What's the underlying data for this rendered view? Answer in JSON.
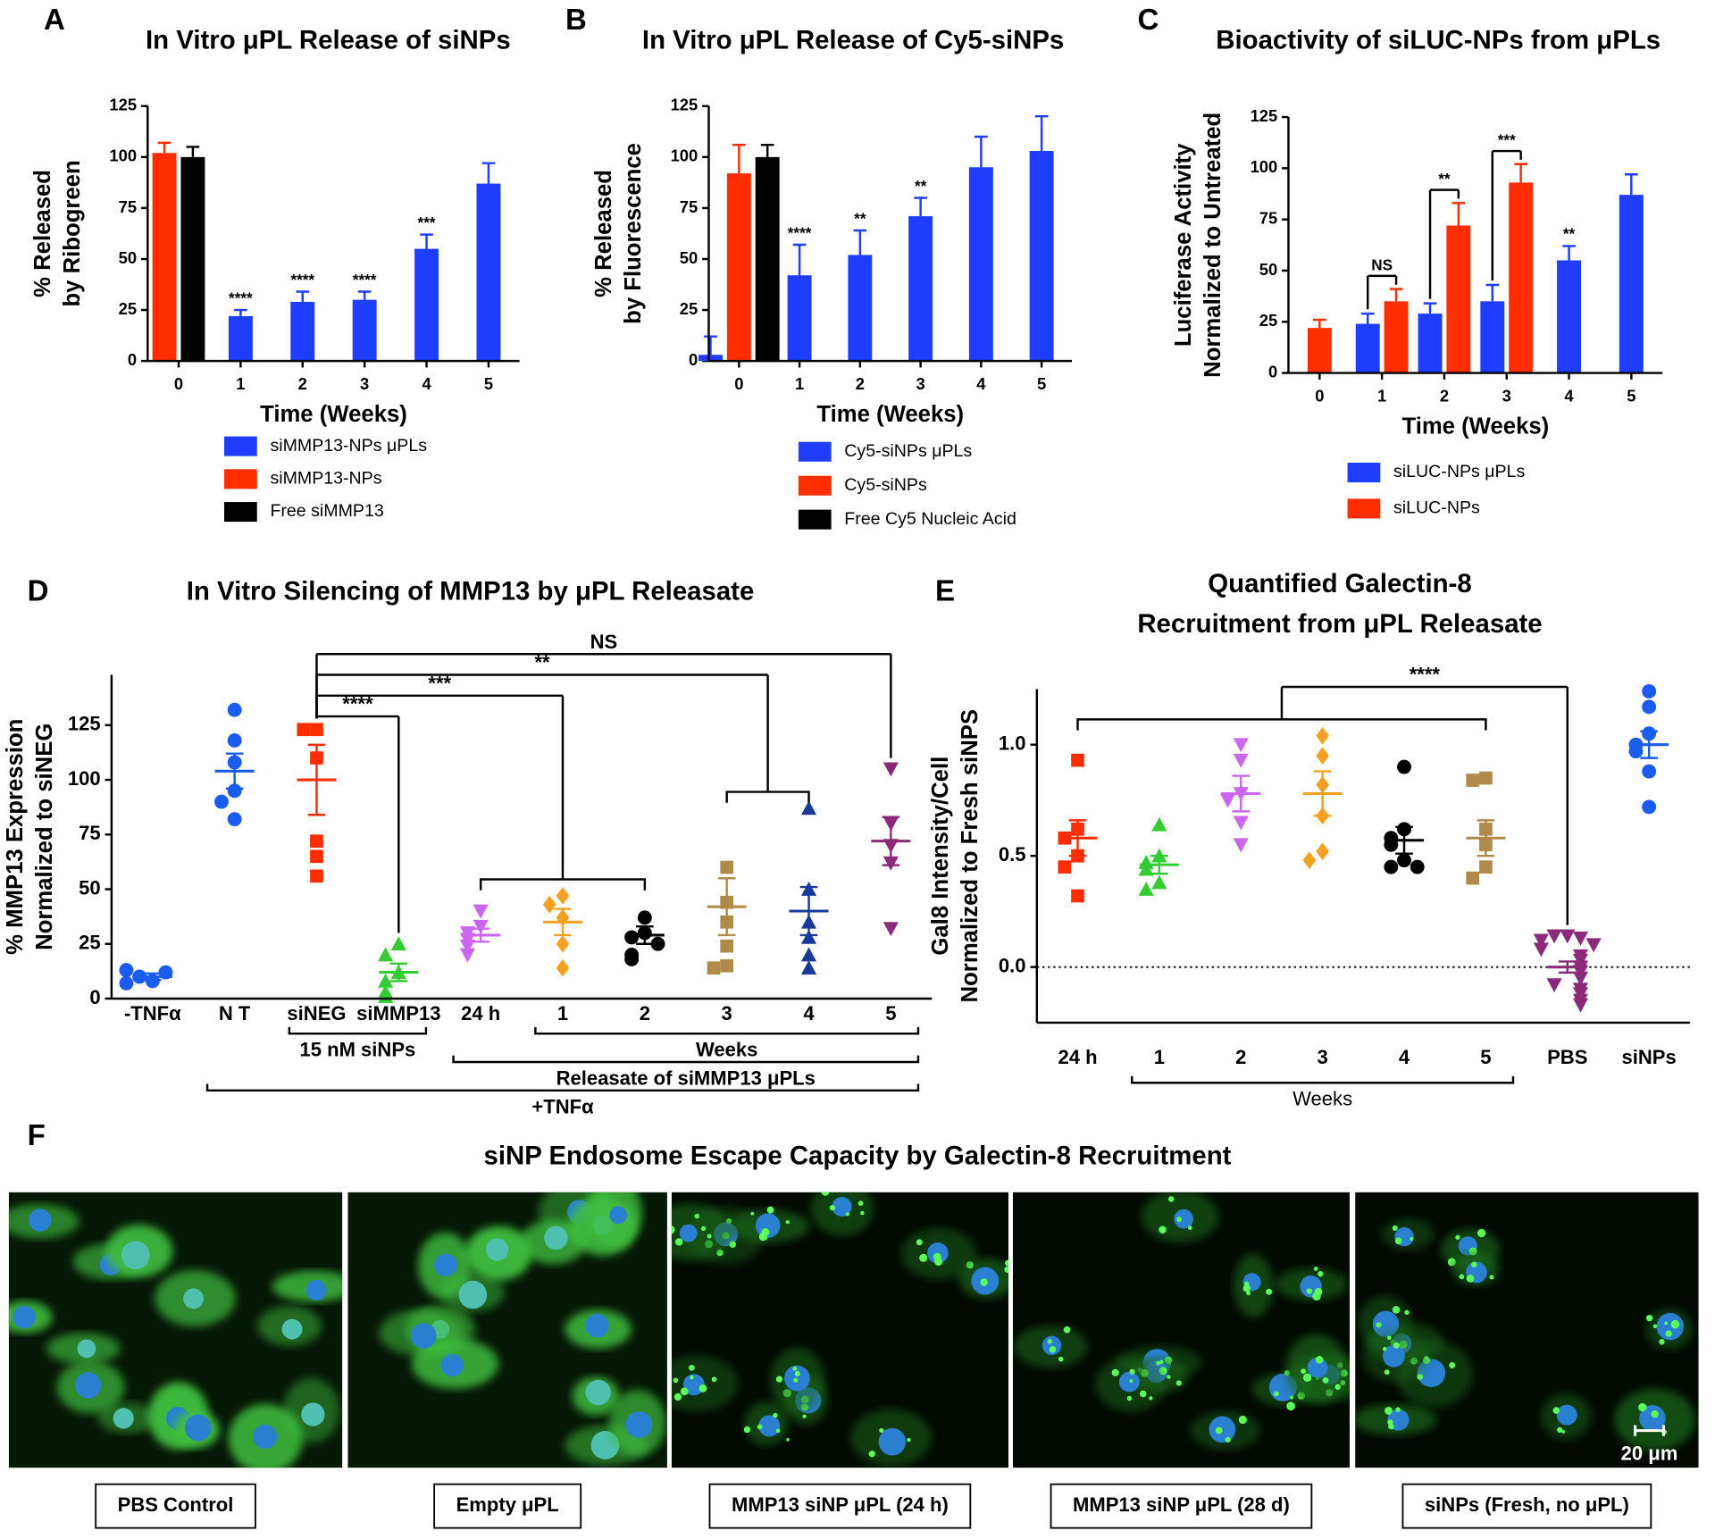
{
  "chart_data": [
    {
      "type": "bar",
      "label": "A",
      "title": "In Vitro μPL Release of siNPs",
      "ylabel": [
        "% Released",
        "by Ribogreen"
      ],
      "xlabel": "Time (Weeks)",
      "categories": [
        "0",
        "1",
        "2",
        "3",
        "4",
        "5"
      ],
      "ylim": [
        0,
        125
      ],
      "yticks": [
        0,
        25,
        50,
        75,
        100,
        125
      ],
      "series": [
        {
          "name": "siMMP13-NPs μPLs",
          "color": "#1f3dff",
          "values": [
            null,
            22,
            29,
            30,
            55,
            87
          ],
          "errors": [
            null,
            3,
            5,
            4,
            7,
            10
          ]
        },
        {
          "name": "siMMP13-NPs",
          "color": "#ff2d00",
          "values": [
            102,
            null,
            null,
            null,
            null,
            null
          ],
          "errors": [
            5,
            null,
            null,
            null,
            null,
            null
          ]
        },
        {
          "name": "Free siMMP13",
          "color": "#000000",
          "values": [
            100,
            null,
            null,
            null,
            null,
            null
          ],
          "errors": [
            5,
            null,
            null,
            null,
            null,
            null
          ]
        }
      ],
      "annotations": [
        {
          "text": "****",
          "category": "1"
        },
        {
          "text": "****",
          "category": "2"
        },
        {
          "text": "****",
          "category": "3"
        },
        {
          "text": "***",
          "category": "4"
        }
      ]
    },
    {
      "type": "bar",
      "label": "B",
      "title": "In Vitro μPL Release of Cy5-siNPs",
      "ylabel": [
        "% Released",
        "by Fluorescence"
      ],
      "xlabel": "Time (Weeks)",
      "categories": [
        "0",
        "1",
        "2",
        "3",
        "4",
        "5"
      ],
      "ylim": [
        0,
        125
      ],
      "yticks": [
        0,
        25,
        50,
        75,
        100,
        125
      ],
      "series": [
        {
          "name": "Cy5-siNPs μPLs",
          "color": "#1f3dff",
          "values": [
            3,
            42,
            52,
            71,
            95,
            103
          ],
          "errors": [
            9,
            15,
            12,
            9,
            15,
            17
          ]
        },
        {
          "name": "Cy5-siNPs",
          "color": "#ff2d00",
          "values": [
            92,
            null,
            null,
            null,
            null,
            null
          ],
          "errors": [
            14,
            null,
            null,
            null,
            null,
            null
          ]
        },
        {
          "name": "Free Cy5 Nucleic Acid",
          "color": "#000000",
          "values": [
            100,
            null,
            null,
            null,
            null,
            null
          ],
          "errors": [
            6,
            null,
            null,
            null,
            null,
            null
          ]
        }
      ],
      "annotations": [
        {
          "text": "****",
          "category": "1"
        },
        {
          "text": "**",
          "category": "2"
        },
        {
          "text": "**",
          "category": "3"
        }
      ]
    },
    {
      "type": "bar",
      "label": "C",
      "title": "Bioactivity of siLUC-NPs from μPLs",
      "ylabel": [
        "Luciferase  Activity",
        "Normalized to Untreated"
      ],
      "xlabel": "Time (Weeks)",
      "categories": [
        "0",
        "1",
        "2",
        "3",
        "4",
        "5"
      ],
      "ylim": [
        0,
        125
      ],
      "yticks": [
        0,
        25,
        50,
        75,
        100,
        125
      ],
      "series": [
        {
          "name": "siLUC-NPs μPLs",
          "color": "#1f3dff",
          "values": [
            null,
            24,
            29,
            35,
            55,
            87
          ],
          "errors": [
            null,
            5,
            5,
            8,
            7,
            10
          ]
        },
        {
          "name": "siLUC-NPs",
          "color": "#ff2d00",
          "values": [
            22,
            35,
            72,
            93,
            null,
            null
          ],
          "errors": [
            4,
            6,
            11,
            9,
            null,
            null
          ]
        }
      ],
      "annotations": [
        {
          "text": "NS",
          "category": "1",
          "bracket": true
        },
        {
          "text": "**",
          "category": "2",
          "bracket": true
        },
        {
          "text": "***",
          "category": "3",
          "bracket": true
        },
        {
          "text": "**",
          "category": "4"
        }
      ]
    },
    {
      "type": "dot",
      "label": "D",
      "title": "In Vitro Silencing of MMP13 by μPL Releasate",
      "ylabel": [
        "% MMP13 Expression",
        "Normalized to siNEG"
      ],
      "categories": [
        "-TNFα",
        "N T",
        "siNEG",
        "siMMP13",
        "24 h",
        "1",
        "2",
        "3",
        "4",
        "5"
      ],
      "ylim": [
        0,
        148
      ],
      "yticks": [
        0,
        25,
        50,
        75,
        100,
        125
      ],
      "groups": [
        {
          "color": "#1a5cf0",
          "marker": "circle",
          "values": [
            8,
            10,
            12,
            13,
            7
          ],
          "mean": 10,
          "sem": 1.5
        },
        {
          "color": "#1a5cf0",
          "marker": "circle",
          "values": [
            132,
            118,
            108,
            95,
            90,
            82
          ],
          "mean": 104,
          "sem": 8
        },
        {
          "color": "#ff2d00",
          "marker": "square",
          "values": [
            123,
            123,
            110,
            72,
            65,
            56
          ],
          "mean": 100,
          "sem": 16
        },
        {
          "color": "#33cc33",
          "marker": "triangle-up",
          "values": [
            25,
            20,
            12,
            8,
            3,
            1
          ],
          "mean": 12,
          "sem": 4
        },
        {
          "color": "#cc66ee",
          "marker": "triangle-down",
          "values": [
            40,
            33,
            30,
            27,
            24,
            20
          ],
          "mean": 29,
          "sem": 3
        },
        {
          "color": "#f5a020",
          "marker": "diamond",
          "values": [
            47,
            43,
            37,
            25,
            14
          ],
          "mean": 35,
          "sem": 6
        },
        {
          "color": "#000000",
          "marker": "circle",
          "values": [
            37,
            30,
            28,
            25,
            20,
            18
          ],
          "mean": 29,
          "sem": 4
        },
        {
          "color": "#b08a4a",
          "marker": "square",
          "values": [
            60,
            44,
            35,
            24,
            15,
            14
          ],
          "mean": 42,
          "sem": 13
        },
        {
          "color": "#1a3a9a",
          "marker": "triangle-up",
          "values": [
            87,
            50,
            35,
            28,
            20,
            14
          ],
          "mean": 40,
          "sem": 11
        },
        {
          "color": "#8b2a7a",
          "marker": "triangle-down",
          "values": [
            105,
            80,
            70,
            62,
            32
          ],
          "mean": 72,
          "sem": 11
        }
      ],
      "comparisons": [
        {
          "text": "****",
          "from": [
            "siNEG"
          ],
          "to": [
            "siMMP13"
          ]
        },
        {
          "text": "***",
          "from": [
            "siNEG"
          ],
          "to": [
            "24 h",
            "1",
            "2"
          ]
        },
        {
          "text": "**",
          "from": [
            "siNEG"
          ],
          "to": [
            "3",
            "4"
          ]
        },
        {
          "text": "NS",
          "from": [
            "siNEG"
          ],
          "to": [
            "5"
          ]
        }
      ],
      "groupings": [
        {
          "text": "15 nM siNPs",
          "from": "siNEG",
          "to": "siMMP13"
        },
        {
          "text": "Weeks",
          "from": "1",
          "to": "5"
        },
        {
          "text": "Releasate of siMMP13 μPLs",
          "from": "24 h",
          "to": "5"
        },
        {
          "text": "+TNFα",
          "from": "N T",
          "to": "5"
        }
      ]
    },
    {
      "type": "dot",
      "label": "E",
      "title": [
        "Quantified Galectin-8",
        "Recruitment from μPL Releasate"
      ],
      "ylabel": [
        "Gal8 Intensity/Cell",
        "Normalized to Fresh siNPS"
      ],
      "categories": [
        "24 h",
        "1",
        "2",
        "3",
        "4",
        "5",
        "PBS",
        "siNPs"
      ],
      "ylim": [
        -0.25,
        1.25
      ],
      "yticks": [
        {
          "value": 0,
          "label": "0.0"
        },
        {
          "value": 0.5,
          "label": "0.5"
        },
        {
          "value": 1,
          "label": "1.0"
        }
      ],
      "zero_line": true,
      "groups": [
        {
          "color": "#ff2d00",
          "marker": "square",
          "values": [
            0.93,
            0.62,
            0.58,
            0.5,
            0.45,
            0.32
          ],
          "mean": 0.58,
          "sem": 0.08
        },
        {
          "color": "#33cc33",
          "marker": "triangle-up",
          "values": [
            0.64,
            0.5,
            0.47,
            0.44,
            0.38,
            0.35
          ],
          "mean": 0.46,
          "sem": 0.04
        },
        {
          "color": "#cc66ee",
          "marker": "triangle-down",
          "values": [
            1.0,
            0.93,
            0.78,
            0.75,
            0.65,
            0.55
          ],
          "mean": 0.78,
          "sem": 0.08
        },
        {
          "color": "#f5a020",
          "marker": "diamond",
          "values": [
            1.04,
            0.95,
            0.82,
            0.68,
            0.52,
            0.48
          ],
          "mean": 0.78,
          "sem": 0.1
        },
        {
          "color": "#000000",
          "marker": "circle",
          "values": [
            0.9,
            0.62,
            0.58,
            0.55,
            0.48,
            0.45,
            0.45
          ],
          "mean": 0.57,
          "sem": 0.06
        },
        {
          "color": "#b08a4a",
          "marker": "square",
          "values": [
            0.85,
            0.84,
            0.62,
            0.55,
            0.45,
            0.4
          ],
          "mean": 0.58,
          "sem": 0.08
        },
        {
          "color": "#8b2a7a",
          "marker": "triangle-down",
          "values": [
            0.14,
            0.14,
            0.13,
            0.12,
            0.1,
            0.08,
            0.05,
            0.03,
            0,
            -0.02,
            -0.05,
            -0.08,
            -0.1,
            -0.12,
            -0.15,
            -0.17
          ],
          "mean": 0,
          "sem": 0.025
        },
        {
          "color": "#1a5cf0",
          "marker": "circle",
          "values": [
            1.24,
            1.17,
            1.05,
            1.0,
            0.97,
            0.88,
            0.72
          ],
          "mean": 1.0,
          "sem": 0.06
        }
      ],
      "comparisons": [
        {
          "text": "****",
          "from": [
            "24 h",
            "1",
            "2",
            "3",
            "4",
            "5"
          ],
          "to": [
            "PBS"
          ]
        }
      ],
      "groupings": [
        {
          "text": "Weeks",
          "from": "1",
          "to": "5"
        }
      ]
    }
  ],
  "panel_f": {
    "label": "F",
    "title": "siNP Endosome Escape Capacity by Galectin-8 Recruitment",
    "captions": [
      "PBS Control",
      "Empty μPL",
      "MMP13 siNP μPL (24 h)",
      "MMP13 siNP μPL (28 d)",
      "siNPs (Fresh, no μPL)"
    ],
    "scale_bar": "20 μm"
  }
}
